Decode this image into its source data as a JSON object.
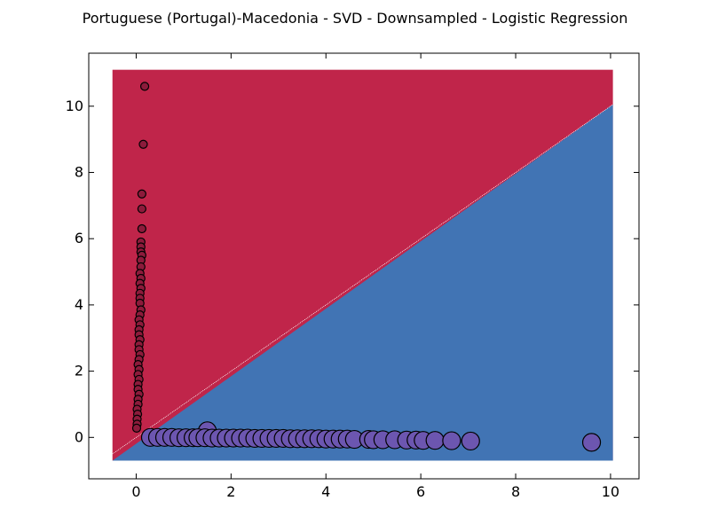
{
  "chart_data": {
    "type": "scatter",
    "title": "Portuguese (Portugal)-Macedonia - SVD - Downsampled - Logistic Regression",
    "xlabel": "",
    "ylabel": "",
    "xlim": [
      -1,
      10.6
    ],
    "ylim": [
      -1.25,
      11.6
    ],
    "xticks": [
      0,
      2,
      4,
      6,
      8,
      10
    ],
    "yticks": [
      0,
      2,
      4,
      6,
      8,
      10
    ],
    "grid": false,
    "legend": "none",
    "decision_regions": {
      "extent_x": [
        -0.5,
        10.05
      ],
      "extent_y": [
        -0.7,
        11.1
      ],
      "boundary": "y = x",
      "region_above": {
        "color": "#c0254a"
      },
      "region_below": {
        "color": "#4174b4"
      }
    },
    "series": [
      {
        "color": "#8c1b3b",
        "marker_size": "small",
        "points": [
          [
            0.18,
            10.6
          ],
          [
            0.15,
            8.85
          ],
          [
            0.12,
            7.35
          ],
          [
            0.12,
            6.9
          ],
          [
            0.12,
            6.3
          ],
          [
            0.1,
            5.9
          ],
          [
            0.1,
            5.75
          ],
          [
            0.1,
            5.6
          ],
          [
            0.12,
            5.5
          ],
          [
            0.1,
            5.35
          ],
          [
            0.1,
            5.15
          ],
          [
            0.08,
            4.95
          ],
          [
            0.1,
            4.8
          ],
          [
            0.08,
            4.65
          ],
          [
            0.1,
            4.5
          ],
          [
            0.08,
            4.35
          ],
          [
            0.08,
            4.2
          ],
          [
            0.08,
            4.05
          ],
          [
            0.1,
            3.85
          ],
          [
            0.08,
            3.7
          ],
          [
            0.06,
            3.55
          ],
          [
            0.08,
            3.4
          ],
          [
            0.06,
            3.25
          ],
          [
            0.06,
            3.1
          ],
          [
            0.08,
            2.95
          ],
          [
            0.06,
            2.8
          ],
          [
            0.06,
            2.65
          ],
          [
            0.08,
            2.5
          ],
          [
            0.06,
            2.35
          ],
          [
            0.04,
            2.2
          ],
          [
            0.06,
            2.05
          ],
          [
            0.04,
            1.9
          ],
          [
            0.06,
            1.75
          ],
          [
            0.04,
            1.6
          ],
          [
            0.04,
            1.45
          ],
          [
            0.06,
            1.3
          ],
          [
            0.04,
            1.15
          ],
          [
            0.04,
            1.0
          ],
          [
            0.02,
            0.85
          ],
          [
            0.03,
            0.7
          ],
          [
            0.02,
            0.55
          ],
          [
            0.02,
            0.4
          ],
          [
            0.01,
            0.28
          ]
        ]
      },
      {
        "color": "#6c56b0",
        "marker_size": "large",
        "points": [
          [
            1.5,
            0.2
          ],
          [
            0.3,
            0.0
          ],
          [
            0.45,
            0.0
          ],
          [
            0.6,
            0.0
          ],
          [
            0.75,
            0.0
          ],
          [
            0.9,
            -0.01
          ],
          [
            1.05,
            -0.01
          ],
          [
            1.2,
            -0.01
          ],
          [
            1.3,
            -0.01
          ],
          [
            1.45,
            -0.01
          ],
          [
            1.6,
            -0.02
          ],
          [
            1.75,
            -0.02
          ],
          [
            1.9,
            -0.02
          ],
          [
            2.05,
            -0.02
          ],
          [
            2.2,
            -0.02
          ],
          [
            2.35,
            -0.02
          ],
          [
            2.5,
            -0.03
          ],
          [
            2.65,
            -0.03
          ],
          [
            2.8,
            -0.03
          ],
          [
            2.95,
            -0.03
          ],
          [
            3.1,
            -0.03
          ],
          [
            3.25,
            -0.04
          ],
          [
            3.4,
            -0.04
          ],
          [
            3.55,
            -0.04
          ],
          [
            3.7,
            -0.04
          ],
          [
            3.85,
            -0.04
          ],
          [
            4.0,
            -0.05
          ],
          [
            4.15,
            -0.05
          ],
          [
            4.3,
            -0.05
          ],
          [
            4.45,
            -0.05
          ],
          [
            4.6,
            -0.06
          ],
          [
            4.9,
            -0.06
          ],
          [
            5.0,
            -0.07
          ],
          [
            5.2,
            -0.07
          ],
          [
            5.45,
            -0.07
          ],
          [
            5.7,
            -0.08
          ],
          [
            5.9,
            -0.08
          ],
          [
            6.05,
            -0.09
          ],
          [
            6.3,
            -0.09
          ],
          [
            6.65,
            -0.1
          ],
          [
            7.05,
            -0.11
          ],
          [
            9.6,
            -0.15
          ]
        ]
      }
    ]
  }
}
